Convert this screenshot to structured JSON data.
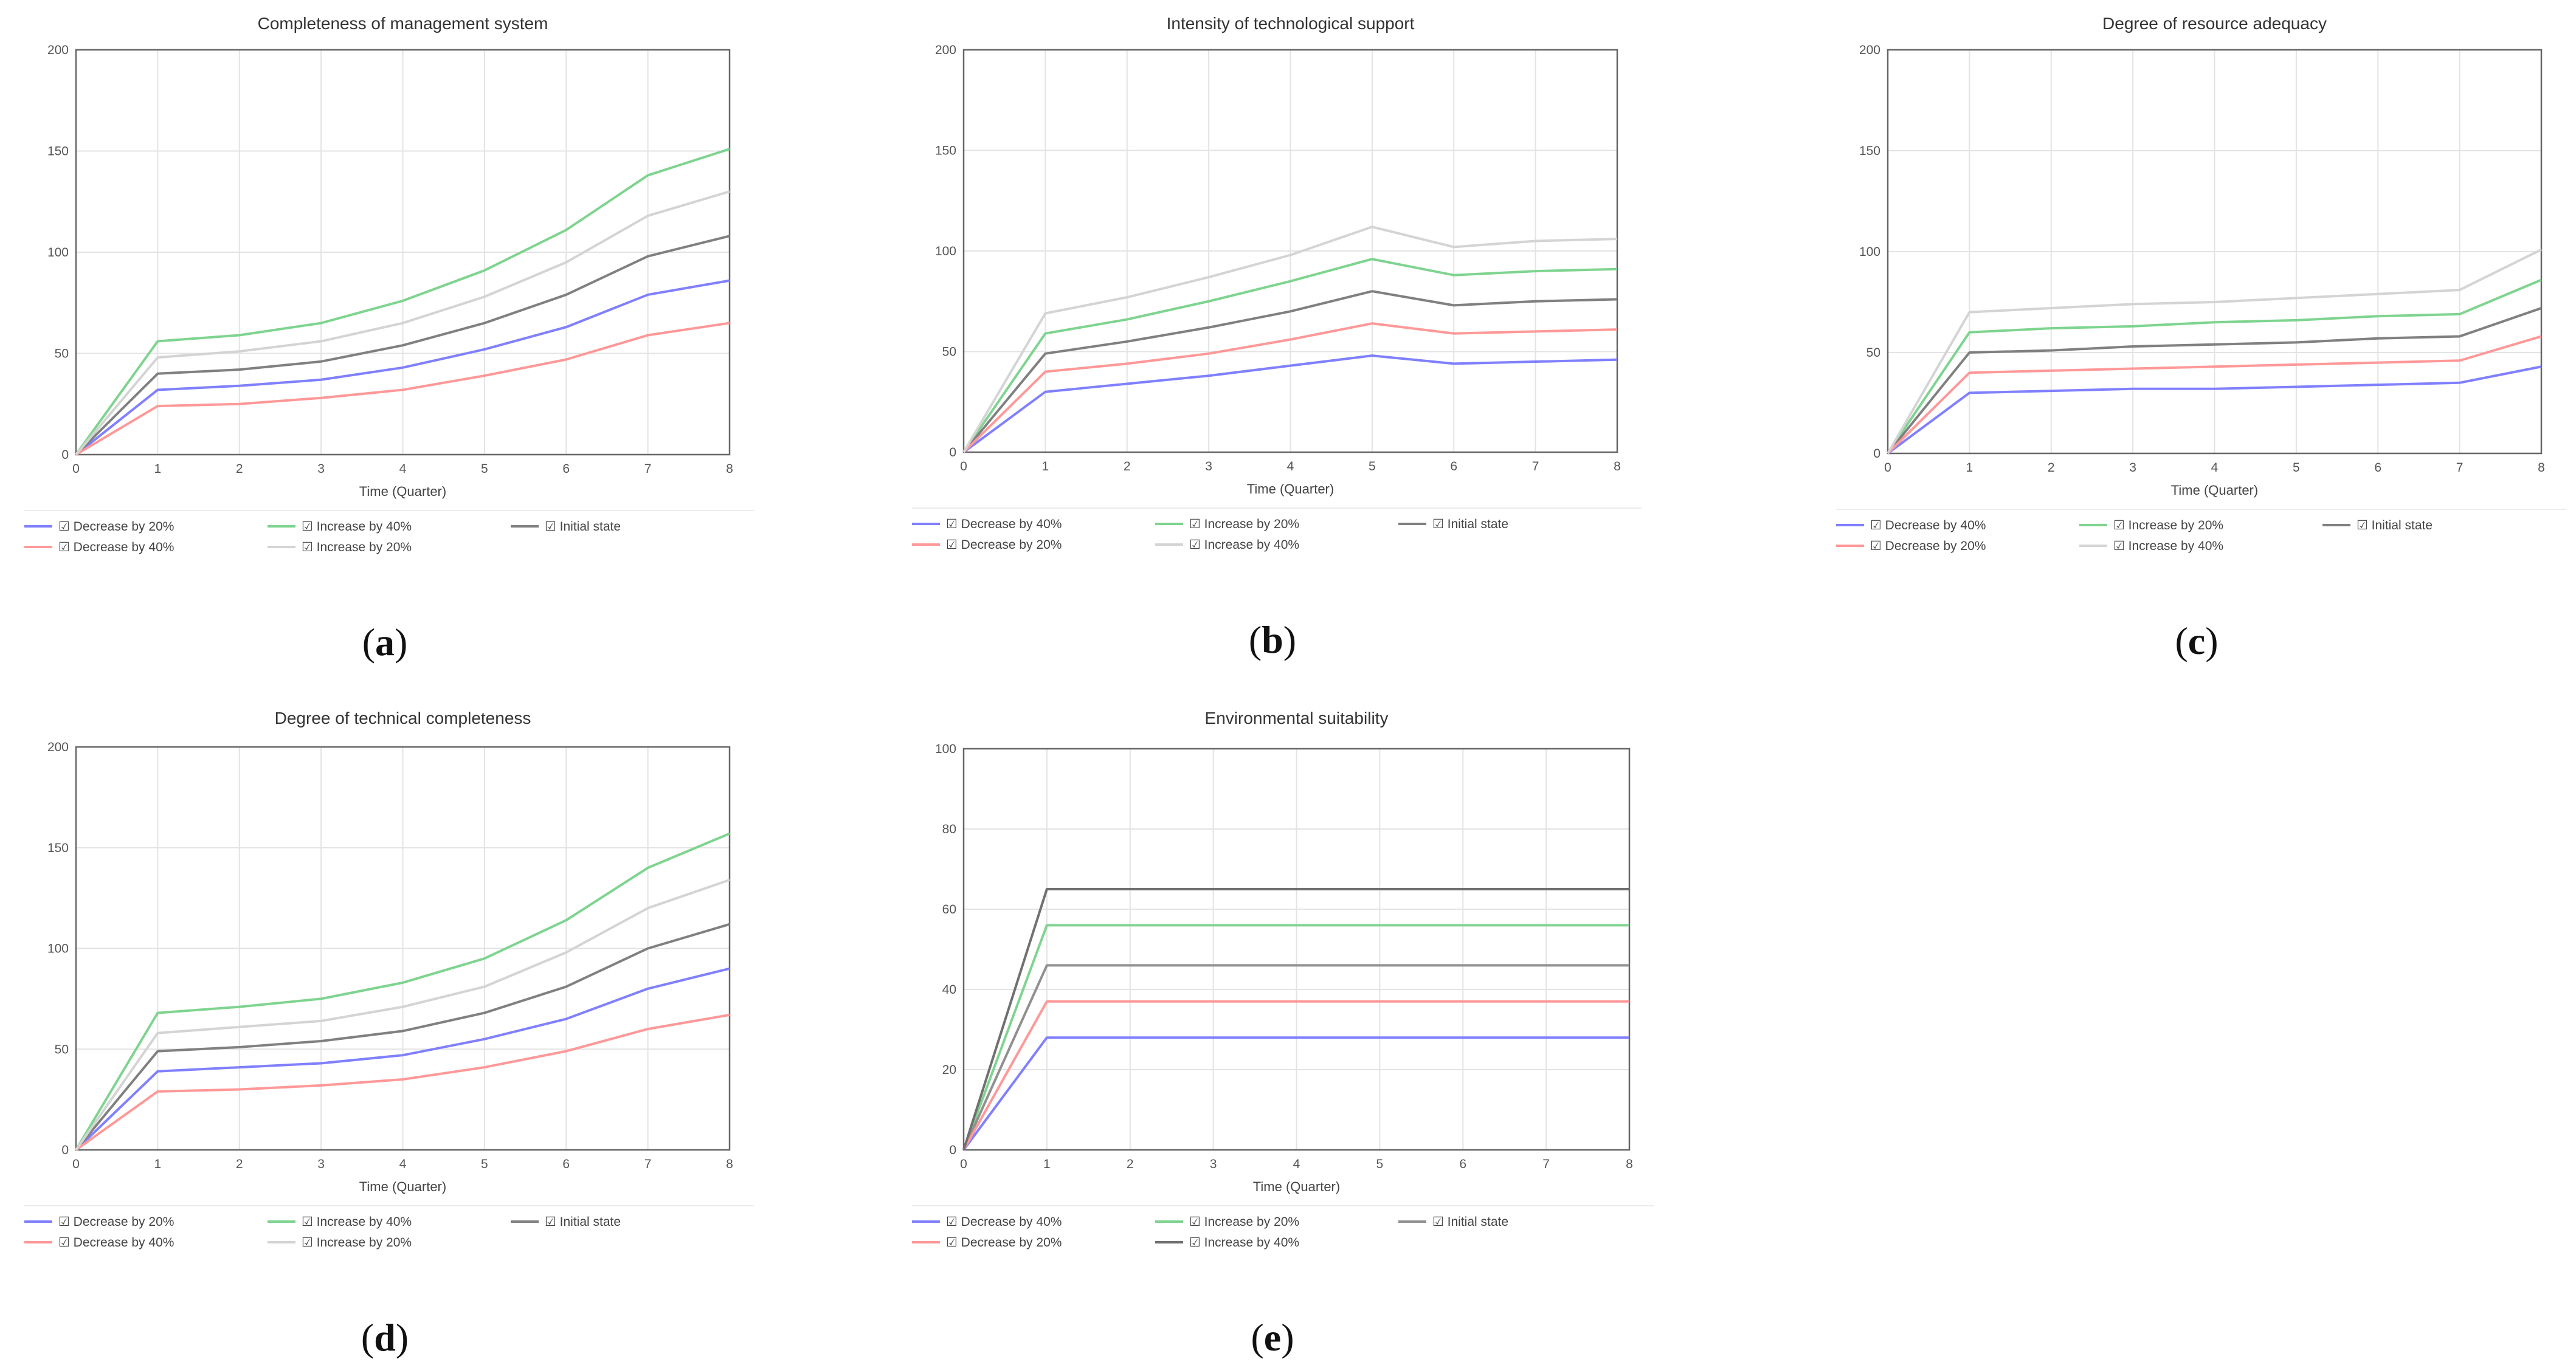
{
  "figure": {
    "captions": [
      "(a)",
      "(b)",
      "(c)",
      "(d)",
      "(e)"
    ]
  },
  "chart_data": [
    {
      "type": "line",
      "title": "Completeness of management system",
      "xlabel": "Time (Quarter)",
      "ylabel": "",
      "x": [
        0,
        1,
        2,
        3,
        4,
        5,
        6,
        7,
        8
      ],
      "xlim": [
        0,
        8
      ],
      "ylim": [
        0,
        200
      ],
      "yticks": [
        0,
        50,
        100,
        150,
        200
      ],
      "legend_position": "bottom",
      "series": [
        {
          "name": "☑ Decrease by 20%",
          "color": "#8080ff",
          "values": [
            0,
            32,
            34,
            37,
            43,
            52,
            63,
            79,
            86
          ]
        },
        {
          "name": "☑ Increase by 40%",
          "color": "#7ed48f",
          "values": [
            0,
            56,
            59,
            65,
            76,
            91,
            111,
            138,
            151
          ]
        },
        {
          "name": "☑ Initial state",
          "color": "#808080",
          "values": [
            0,
            40,
            42,
            46,
            54,
            65,
            79,
            98,
            108
          ]
        },
        {
          "name": "☑ Decrease by 40%",
          "color": "#ff9898",
          "values": [
            0,
            24,
            25,
            28,
            32,
            39,
            47,
            59,
            65
          ]
        },
        {
          "name": "☑ Increase by 20%",
          "color": "#d4d4d4",
          "values": [
            0,
            48,
            51,
            56,
            65,
            78,
            95,
            118,
            130
          ]
        }
      ]
    },
    {
      "type": "line",
      "title": "Intensity of technological support",
      "xlabel": "Time (Quarter)",
      "ylabel": "",
      "x": [
        0,
        1,
        2,
        3,
        4,
        5,
        6,
        7,
        8
      ],
      "xlim": [
        0,
        8
      ],
      "ylim": [
        0,
        200
      ],
      "yticks": [
        0,
        50,
        100,
        150,
        200
      ],
      "legend_position": "bottom",
      "series": [
        {
          "name": "☑ Decrease by 40%",
          "color": "#8080ff",
          "values": [
            0,
            30,
            34,
            38,
            43,
            48,
            44,
            45,
            46
          ]
        },
        {
          "name": "☑ Increase by 20%",
          "color": "#7ed48f",
          "values": [
            0,
            59,
            66,
            75,
            85,
            96,
            88,
            90,
            91
          ]
        },
        {
          "name": "☑ Initial state",
          "color": "#808080",
          "values": [
            0,
            49,
            55,
            62,
            70,
            80,
            73,
            75,
            76
          ]
        },
        {
          "name": "☑ Decrease by 20%",
          "color": "#ff9898",
          "values": [
            0,
            40,
            44,
            49,
            56,
            64,
            59,
            60,
            61
          ]
        },
        {
          "name": "☑ Increase by 40%",
          "color": "#d4d4d4",
          "values": [
            0,
            69,
            77,
            87,
            98,
            112,
            102,
            105,
            106
          ]
        }
      ]
    },
    {
      "type": "line",
      "title": "Degree of resource adequacy",
      "xlabel": "Time (Quarter)",
      "ylabel": "",
      "x": [
        0,
        1,
        2,
        3,
        4,
        5,
        6,
        7,
        8
      ],
      "xlim": [
        0,
        8
      ],
      "ylim": [
        0,
        200
      ],
      "yticks": [
        0,
        50,
        100,
        150,
        200
      ],
      "legend_position": "bottom",
      "series": [
        {
          "name": "☑ Decrease by 40%",
          "color": "#8080ff",
          "values": [
            0,
            30,
            31,
            32,
            32,
            33,
            34,
            35,
            43
          ]
        },
        {
          "name": "☑ Increase by 20%",
          "color": "#7ed48f",
          "values": [
            0,
            60,
            62,
            63,
            65,
            66,
            68,
            69,
            86
          ]
        },
        {
          "name": "☑ Initial state",
          "color": "#808080",
          "values": [
            0,
            50,
            51,
            53,
            54,
            55,
            57,
            58,
            72
          ]
        },
        {
          "name": "☑ Decrease by 20%",
          "color": "#ff9898",
          "values": [
            0,
            40,
            41,
            42,
            43,
            44,
            45,
            46,
            58
          ]
        },
        {
          "name": "☑ Increase by 40%",
          "color": "#d4d4d4",
          "values": [
            0,
            70,
            72,
            74,
            75,
            77,
            79,
            81,
            101
          ]
        }
      ]
    },
    {
      "type": "line",
      "title": "Degree of technical completeness",
      "xlabel": "Time (Quarter)",
      "ylabel": "",
      "x": [
        0,
        1,
        2,
        3,
        4,
        5,
        6,
        7,
        8
      ],
      "xlim": [
        0,
        8
      ],
      "ylim": [
        0,
        200
      ],
      "yticks": [
        0,
        50,
        100,
        150,
        200
      ],
      "legend_position": "bottom",
      "series": [
        {
          "name": "☑ Decrease by 20%",
          "color": "#8080ff",
          "values": [
            0,
            39,
            41,
            43,
            47,
            55,
            65,
            80,
            90
          ]
        },
        {
          "name": "☑ Increase by 40%",
          "color": "#7ed48f",
          "values": [
            0,
            68,
            71,
            75,
            83,
            95,
            114,
            140,
            157
          ]
        },
        {
          "name": "☑ Initial state",
          "color": "#808080",
          "values": [
            0,
            49,
            51,
            54,
            59,
            68,
            81,
            100,
            112
          ]
        },
        {
          "name": "☑ Decrease by 40%",
          "color": "#ff9898",
          "values": [
            0,
            29,
            30,
            32,
            35,
            41,
            49,
            60,
            67
          ]
        },
        {
          "name": "☑ Increase by 20%",
          "color": "#d4d4d4",
          "values": [
            0,
            58,
            61,
            64,
            71,
            81,
            98,
            120,
            134
          ]
        }
      ]
    },
    {
      "type": "line",
      "title": "Environmental suitability",
      "xlabel": "Time (Quarter)",
      "ylabel": "",
      "x": [
        0,
        1,
        2,
        3,
        4,
        5,
        6,
        7,
        8
      ],
      "xlim": [
        0,
        8
      ],
      "ylim": [
        0,
        100
      ],
      "yticks": [
        0,
        20,
        40,
        60,
        80,
        100
      ],
      "legend_position": "bottom",
      "series": [
        {
          "name": "☑ Decrease by 40%",
          "color": "#8080ff",
          "values": [
            0,
            28,
            28,
            28,
            28,
            28,
            28,
            28,
            28
          ]
        },
        {
          "name": "☑ Increase by 20%",
          "color": "#7ed48f",
          "values": [
            0,
            56,
            56,
            56,
            56,
            56,
            56,
            56,
            56
          ]
        },
        {
          "name": "☑ Initial state",
          "color": "#909090",
          "values": [
            0,
            46,
            46,
            46,
            46,
            46,
            46,
            46,
            46
          ]
        },
        {
          "name": "☑ Decrease by 20%",
          "color": "#ff9898",
          "values": [
            0,
            37,
            37,
            37,
            37,
            37,
            37,
            37,
            37
          ]
        },
        {
          "name": "☑ Increase by 40%",
          "color": "#707070",
          "values": [
            0,
            65,
            65,
            65,
            65,
            65,
            65,
            65,
            65
          ]
        }
      ]
    }
  ]
}
